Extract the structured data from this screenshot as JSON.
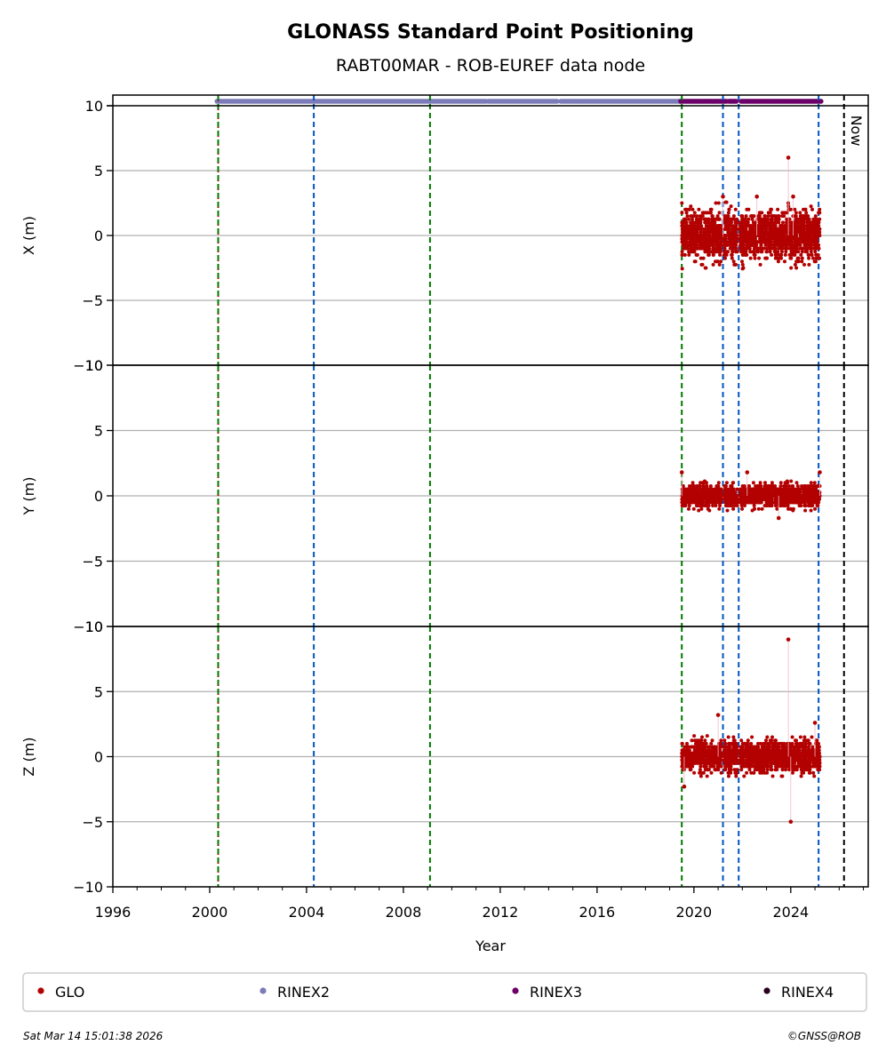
{
  "chart_data": {
    "type": "scatter",
    "title": "GLONASS Standard Point Positioning",
    "subtitle": "RABT00MAR - ROB-EUREF data node",
    "xlabel": "Year",
    "xlim": [
      1996,
      2027.2
    ],
    "xticks": [
      1996,
      2000,
      2004,
      2008,
      2012,
      2016,
      2020,
      2024
    ],
    "grid": "horizontal",
    "panels": [
      {
        "ylabel": "X (m)",
        "ylim": [
          -10,
          10
        ],
        "yticks": [
          -10,
          -5,
          0,
          5,
          10
        ],
        "spread": 1.6,
        "outliers": [
          {
            "x": 2023.9,
            "y": 6.0
          },
          {
            "x": 2021.2,
            "y": 3.0
          },
          {
            "x": 2024.1,
            "y": 3.0
          },
          {
            "x": 2022.6,
            "y": 3.0
          }
        ]
      },
      {
        "ylabel": "Y (m)",
        "ylim": [
          -10,
          10
        ],
        "yticks": [
          -10,
          -5,
          0,
          5,
          10
        ],
        "spread": 0.7,
        "outliers": [
          {
            "x": 2019.5,
            "y": 1.8
          },
          {
            "x": 2022.2,
            "y": 1.8
          },
          {
            "x": 2025.2,
            "y": 1.8
          },
          {
            "x": 2023.5,
            "y": -1.7
          }
        ]
      },
      {
        "ylabel": "Z (m)",
        "ylim": [
          -10,
          10
        ],
        "yticks": [
          -10,
          -5,
          0,
          5,
          10
        ],
        "spread": 1.0,
        "outliers": [
          {
            "x": 2023.9,
            "y": 9.0
          },
          {
            "x": 2024.0,
            "y": -5.0
          },
          {
            "x": 2021.0,
            "y": 3.2
          },
          {
            "x": 2025.0,
            "y": 2.6
          },
          {
            "x": 2019.6,
            "y": -2.3
          }
        ]
      }
    ],
    "observation_segments": [
      {
        "x": [
          2000.3,
          2019.45
        ],
        "y": 0.0,
        "mean": 0.0
      },
      {
        "x": [
          2019.55,
          2021.15
        ],
        "y": 0.0,
        "mean": 0.1
      },
      {
        "x": [
          2021.25,
          2021.8
        ],
        "y": 0.0,
        "mean": 0.0
      },
      {
        "x": [
          2021.9,
          2025.15
        ],
        "y": 0.0,
        "mean": 0.0
      }
    ],
    "data_coverage": [
      [
        2019.5,
        2021.15
      ],
      [
        2021.25,
        2021.8
      ],
      [
        2021.9,
        2025.2
      ]
    ],
    "rinex_bars": [
      {
        "series": "RINEX2",
        "color": "#7b7bba",
        "x": [
          2000.3,
          2019.45
        ],
        "gaps": [
          [
            2011.4,
            2011.5
          ],
          [
            2014.35,
            2014.5
          ],
          [
            2015.2,
            2015.25
          ]
        ]
      },
      {
        "series": "RINEX3",
        "color": "#6b0068",
        "x": [
          2019.45,
          2025.25
        ],
        "gaps": [
          [
            2020.3,
            2020.35
          ],
          [
            2020.75,
            2020.8
          ],
          [
            2021.35,
            2021.45
          ],
          [
            2021.75,
            2021.95
          ],
          [
            2023.25,
            2023.3
          ],
          [
            2024.55,
            2024.6
          ]
        ]
      }
    ],
    "vlines": [
      {
        "x": 2000.35,
        "color": "#cc0000",
        "style": "dotted"
      },
      {
        "x": 2000.35,
        "color": "#007700",
        "style": "dashed"
      },
      {
        "x": 2004.3,
        "color": "#0055bb",
        "style": "dashed"
      },
      {
        "x": 2009.1,
        "color": "#007700",
        "style": "dashed"
      },
      {
        "x": 2019.5,
        "color": "#007700",
        "style": "dashed"
      },
      {
        "x": 2021.2,
        "color": "#0055bb",
        "style": "dashed"
      },
      {
        "x": 2021.85,
        "color": "#0055bb",
        "style": "dashed"
      },
      {
        "x": 2025.15,
        "color": "#0055bb",
        "style": "dashed"
      },
      {
        "x": 2026.2,
        "color": "#000000",
        "style": "dashed",
        "label": "Now"
      }
    ],
    "legend": {
      "placement": "bottom",
      "entries": [
        {
          "label": "GLO",
          "color": "#b30000"
        },
        {
          "label": "RINEX2",
          "color": "#7b7bba"
        },
        {
          "label": "RINEX3",
          "color": "#6b0068"
        },
        {
          "label": "RINEX4",
          "color": "#2a0020"
        }
      ]
    }
  },
  "footer": {
    "timestamp": "Sat Mar 14 15:01:38 2026",
    "copyright": "©GNSS@ROB"
  }
}
